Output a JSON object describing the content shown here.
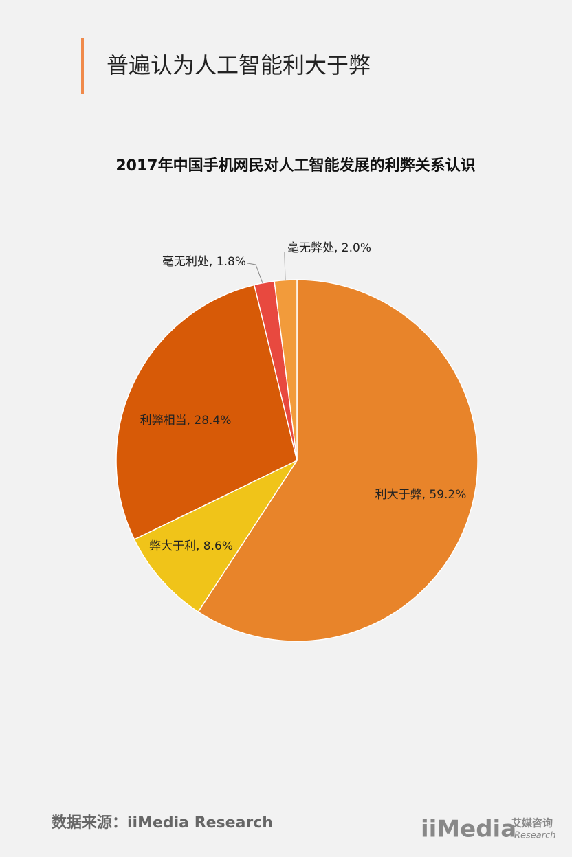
{
  "header": {
    "title": "普遍认为人工智能利大于弊"
  },
  "chart_data": {
    "type": "pie",
    "title": "2017年中国手机网民对人工智能发展的利弊关系认识",
    "values": [
      59.2,
      8.6,
      28.4,
      1.8,
      2.0
    ],
    "value_labels": [
      "利大于弊, 59.2%",
      "弊大于利, 8.6%",
      "利弊相当, 28.4%",
      "毫无利处, 1.8%",
      "毫无弊处, 2.0%"
    ],
    "colors": [
      "#e8842a",
      "#f0c419",
      "#d75a07",
      "#e8493f",
      "#f29b3b"
    ]
  },
  "footer": {
    "source": "数据来源：iiMedia Research",
    "logo": "iiMedia",
    "logo_cn": "艾媒咨询",
    "logo_en": "Research"
  }
}
